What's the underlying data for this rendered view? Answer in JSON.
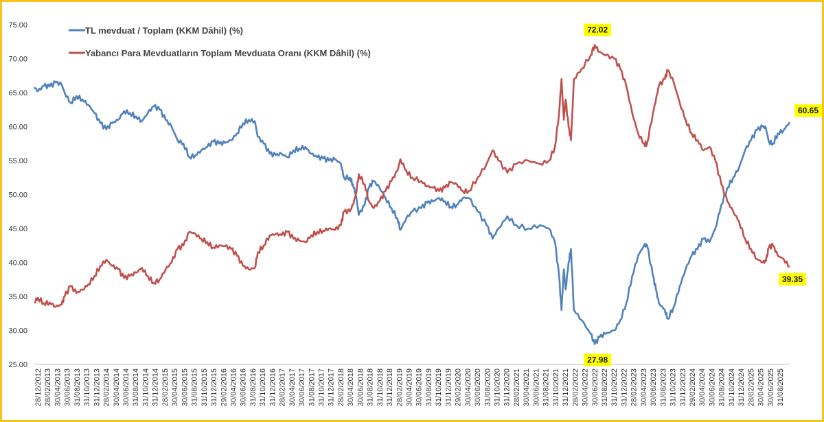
{
  "chart_data": {
    "type": "line",
    "title": "",
    "xlabel": "",
    "ylabel": "",
    "ylim": [
      25,
      75
    ],
    "y_ticks": [
      "25.00",
      "30.00",
      "35.00",
      "40.00",
      "45.00",
      "50.00",
      "55.00",
      "60.00",
      "65.00",
      "70.00",
      "75.00"
    ],
    "x_ticks": [
      "28/12/2012",
      "28/02/2013",
      "30/04/2013",
      "30/06/2013",
      "31/08/2013",
      "31/10/2013",
      "31/12/2013",
      "28/02/2014",
      "30/04/2014",
      "30/06/2014",
      "31/08/2014",
      "31/10/2014",
      "31/12/2014",
      "28/02/2015",
      "30/04/2015",
      "30/06/2015",
      "31/08/2015",
      "31/10/2015",
      "31/12/2015",
      "29/02/2016",
      "30/04/2016",
      "30/06/2016",
      "31/08/2016",
      "31/10/2016",
      "31/12/2016",
      "28/02/2017",
      "30/04/2017",
      "30/06/2017",
      "31/08/2017",
      "31/10/2017",
      "31/12/2017",
      "28/02/2018",
      "30/04/2018",
      "30/06/2018",
      "31/08/2018",
      "31/10/2018",
      "31/12/2018",
      "28/02/2019",
      "30/04/2019",
      "30/06/2019",
      "31/08/2019",
      "31/10/2019",
      "31/12/2019",
      "29/02/2020",
      "30/04/2020",
      "30/06/2020",
      "31/08/2020",
      "31/10/2020",
      "31/12/2020",
      "28/02/2021",
      "30/04/2021",
      "30/06/2021",
      "31/08/2021",
      "31/10/2021",
      "31/12/2021",
      "28/02/2022",
      "30/04/2022",
      "30/06/2022",
      "31/08/2022",
      "31/10/2022",
      "31/12/2022",
      "28/02/2023",
      "30/04/2023",
      "30/06/2023",
      "31/08/2023",
      "31/10/2023",
      "31/12/2023",
      "29/02/2024",
      "30/04/2024",
      "30/06/2024",
      "31/08/2024",
      "31/10/2024",
      "31/12/2024",
      "28/02/2025",
      "30/04/2025",
      "30/06/2025",
      "31/08/2025"
    ],
    "x_range": [
      2012.99,
      2025.7
    ],
    "series": [
      {
        "name": "TL mevduat / Toplam (KKM Dâhil) (%)",
        "color": "#4F81BD",
        "points": [
          [
            2012.99,
            65.8
          ],
          [
            2013.05,
            65.2
          ],
          [
            2013.15,
            66.0
          ],
          [
            2013.25,
            65.9
          ],
          [
            2013.35,
            66.5
          ],
          [
            2013.45,
            66.2
          ],
          [
            2013.5,
            65.0
          ],
          [
            2013.6,
            63.5
          ],
          [
            2013.7,
            64.5
          ],
          [
            2013.8,
            64.0
          ],
          [
            2013.9,
            63.2
          ],
          [
            2014.0,
            62.0
          ],
          [
            2014.1,
            60.5
          ],
          [
            2014.2,
            59.6
          ],
          [
            2014.3,
            60.5
          ],
          [
            2014.4,
            61.0
          ],
          [
            2014.5,
            62.3
          ],
          [
            2014.6,
            62.0
          ],
          [
            2014.7,
            61.5
          ],
          [
            2014.8,
            60.8
          ],
          [
            2014.9,
            62.0
          ],
          [
            2015.0,
            63.0
          ],
          [
            2015.1,
            62.5
          ],
          [
            2015.2,
            61.0
          ],
          [
            2015.3,
            60.0
          ],
          [
            2015.4,
            58.0
          ],
          [
            2015.5,
            57.5
          ],
          [
            2015.6,
            55.5
          ],
          [
            2015.7,
            55.8
          ],
          [
            2015.8,
            56.5
          ],
          [
            2015.9,
            57.0
          ],
          [
            2016.0,
            57.8
          ],
          [
            2016.1,
            57.5
          ],
          [
            2016.2,
            57.6
          ],
          [
            2016.3,
            58.0
          ],
          [
            2016.4,
            59.0
          ],
          [
            2016.5,
            60.5
          ],
          [
            2016.6,
            61.0
          ],
          [
            2016.7,
            60.8
          ],
          [
            2016.75,
            58.5
          ],
          [
            2016.85,
            57.5
          ],
          [
            2016.95,
            56.0
          ],
          [
            2017.05,
            55.8
          ],
          [
            2017.15,
            56.0
          ],
          [
            2017.25,
            55.5
          ],
          [
            2017.35,
            56.5
          ],
          [
            2017.45,
            56.8
          ],
          [
            2017.55,
            57.0
          ],
          [
            2017.65,
            56.0
          ],
          [
            2017.75,
            55.5
          ],
          [
            2017.85,
            55.3
          ],
          [
            2017.95,
            55.0
          ],
          [
            2018.05,
            55.2
          ],
          [
            2018.15,
            54.5
          ],
          [
            2018.2,
            52.5
          ],
          [
            2018.3,
            52.5
          ],
          [
            2018.35,
            51.5
          ],
          [
            2018.4,
            50.0
          ],
          [
            2018.45,
            47.0
          ],
          [
            2018.55,
            48.5
          ],
          [
            2018.62,
            51.0
          ],
          [
            2018.7,
            52.0
          ],
          [
            2018.8,
            51.0
          ],
          [
            2018.9,
            49.5
          ],
          [
            2019.0,
            48.0
          ],
          [
            2019.1,
            46.5
          ],
          [
            2019.15,
            44.8
          ],
          [
            2019.25,
            46.5
          ],
          [
            2019.35,
            47.5
          ],
          [
            2019.5,
            48.0
          ],
          [
            2019.6,
            48.8
          ],
          [
            2019.7,
            49.0
          ],
          [
            2019.8,
            49.5
          ],
          [
            2019.9,
            49.0
          ],
          [
            2020.0,
            48.2
          ],
          [
            2020.1,
            48.5
          ],
          [
            2020.2,
            49.5
          ],
          [
            2020.3,
            49.5
          ],
          [
            2020.45,
            47.5
          ],
          [
            2020.6,
            45.5
          ],
          [
            2020.7,
            43.5
          ],
          [
            2020.8,
            45.0
          ],
          [
            2020.95,
            46.8
          ],
          [
            2021.1,
            45.5
          ],
          [
            2021.3,
            45.0
          ],
          [
            2021.5,
            45.5
          ],
          [
            2021.65,
            45.0
          ],
          [
            2021.75,
            43.0
          ],
          [
            2021.82,
            38.0
          ],
          [
            2021.86,
            33.0
          ],
          [
            2021.9,
            39.0
          ],
          [
            2021.93,
            36.0
          ],
          [
            2021.98,
            40.0
          ],
          [
            2022.02,
            42.0
          ],
          [
            2022.07,
            33.0
          ],
          [
            2022.2,
            31.5
          ],
          [
            2022.35,
            29.5
          ],
          [
            2022.42,
            27.98
          ],
          [
            2022.5,
            29.0
          ],
          [
            2022.6,
            29.5
          ],
          [
            2022.75,
            30.0
          ],
          [
            2022.85,
            31.5
          ],
          [
            2022.95,
            34.0
          ],
          [
            2023.05,
            38.0
          ],
          [
            2023.15,
            41.0
          ],
          [
            2023.25,
            42.5
          ],
          [
            2023.3,
            42.5
          ],
          [
            2023.4,
            38.0
          ],
          [
            2023.45,
            36.0
          ],
          [
            2023.5,
            34.0
          ],
          [
            2023.6,
            33.0
          ],
          [
            2023.65,
            31.7
          ],
          [
            2023.75,
            33.5
          ],
          [
            2023.85,
            36.5
          ],
          [
            2023.95,
            39.0
          ],
          [
            2024.05,
            41.0
          ],
          [
            2024.15,
            42.0
          ],
          [
            2024.25,
            43.5
          ],
          [
            2024.35,
            43.0
          ],
          [
            2024.45,
            45.0
          ],
          [
            2024.55,
            48.5
          ],
          [
            2024.65,
            51.0
          ],
          [
            2024.75,
            52.5
          ],
          [
            2024.85,
            54.0
          ],
          [
            2024.95,
            56.5
          ],
          [
            2025.05,
            58.0
          ],
          [
            2025.15,
            59.5
          ],
          [
            2025.25,
            60.0
          ],
          [
            2025.3,
            59.8
          ],
          [
            2025.35,
            57.8
          ],
          [
            2025.42,
            57.5
          ],
          [
            2025.5,
            59.0
          ],
          [
            2025.6,
            59.5
          ],
          [
            2025.7,
            60.65
          ]
        ]
      },
      {
        "name": "Yabancı Para Mevduatların Toplam Mevduata Oranı (KKM Dâhil) (%)",
        "color": "#C0504D",
        "points": [
          [
            2012.99,
            34.2
          ],
          [
            2013.05,
            34.8
          ],
          [
            2013.15,
            34.0
          ],
          [
            2013.25,
            34.1
          ],
          [
            2013.35,
            33.5
          ],
          [
            2013.45,
            33.8
          ],
          [
            2013.5,
            35.0
          ],
          [
            2013.6,
            36.5
          ],
          [
            2013.7,
            35.5
          ],
          [
            2013.8,
            36.0
          ],
          [
            2013.9,
            36.8
          ],
          [
            2014.0,
            38.0
          ],
          [
            2014.1,
            39.5
          ],
          [
            2014.2,
            40.4
          ],
          [
            2014.3,
            39.5
          ],
          [
            2014.4,
            39.0
          ],
          [
            2014.5,
            37.7
          ],
          [
            2014.6,
            38.0
          ],
          [
            2014.7,
            38.5
          ],
          [
            2014.8,
            39.2
          ],
          [
            2014.9,
            38.0
          ],
          [
            2015.0,
            37.0
          ],
          [
            2015.1,
            37.5
          ],
          [
            2015.2,
            39.0
          ],
          [
            2015.3,
            40.0
          ],
          [
            2015.4,
            42.0
          ],
          [
            2015.5,
            42.5
          ],
          [
            2015.6,
            44.5
          ],
          [
            2015.7,
            44.2
          ],
          [
            2015.8,
            43.5
          ],
          [
            2015.9,
            43.0
          ],
          [
            2016.0,
            42.2
          ],
          [
            2016.1,
            42.5
          ],
          [
            2016.2,
            42.4
          ],
          [
            2016.3,
            42.0
          ],
          [
            2016.4,
            41.0
          ],
          [
            2016.5,
            39.5
          ],
          [
            2016.6,
            39.0
          ],
          [
            2016.7,
            39.2
          ],
          [
            2016.75,
            41.5
          ],
          [
            2016.85,
            42.5
          ],
          [
            2016.95,
            44.0
          ],
          [
            2017.05,
            44.2
          ],
          [
            2017.15,
            44.0
          ],
          [
            2017.25,
            44.5
          ],
          [
            2017.35,
            43.5
          ],
          [
            2017.45,
            43.2
          ],
          [
            2017.55,
            43.0
          ],
          [
            2017.65,
            44.0
          ],
          [
            2017.75,
            44.5
          ],
          [
            2017.85,
            44.7
          ],
          [
            2017.95,
            45.0
          ],
          [
            2018.05,
            44.8
          ],
          [
            2018.15,
            45.5
          ],
          [
            2018.2,
            47.5
          ],
          [
            2018.3,
            47.5
          ],
          [
            2018.35,
            48.5
          ],
          [
            2018.4,
            50.0
          ],
          [
            2018.45,
            53.0
          ],
          [
            2018.55,
            51.5
          ],
          [
            2018.62,
            49.0
          ],
          [
            2018.7,
            48.0
          ],
          [
            2018.8,
            49.0
          ],
          [
            2018.9,
            50.5
          ],
          [
            2019.0,
            52.0
          ],
          [
            2019.1,
            53.5
          ],
          [
            2019.15,
            55.2
          ],
          [
            2019.25,
            53.5
          ],
          [
            2019.35,
            52.5
          ],
          [
            2019.5,
            52.0
          ],
          [
            2019.6,
            51.2
          ],
          [
            2019.7,
            51.0
          ],
          [
            2019.8,
            50.5
          ],
          [
            2019.9,
            51.0
          ],
          [
            2020.0,
            51.8
          ],
          [
            2020.1,
            51.5
          ],
          [
            2020.2,
            50.5
          ],
          [
            2020.3,
            50.5
          ],
          [
            2020.45,
            52.5
          ],
          [
            2020.6,
            54.5
          ],
          [
            2020.7,
            56.5
          ],
          [
            2020.8,
            55.0
          ],
          [
            2020.95,
            53.2
          ],
          [
            2021.1,
            54.5
          ],
          [
            2021.3,
            55.0
          ],
          [
            2021.5,
            54.5
          ],
          [
            2021.65,
            55.0
          ],
          [
            2021.75,
            57.0
          ],
          [
            2021.82,
            62.0
          ],
          [
            2021.86,
            67.0
          ],
          [
            2021.9,
            61.0
          ],
          [
            2021.93,
            64.0
          ],
          [
            2021.98,
            60.0
          ],
          [
            2022.02,
            58.0
          ],
          [
            2022.07,
            67.0
          ],
          [
            2022.2,
            68.5
          ],
          [
            2022.35,
            70.5
          ],
          [
            2022.42,
            72.02
          ],
          [
            2022.5,
            71.0
          ],
          [
            2022.6,
            70.5
          ],
          [
            2022.75,
            70.0
          ],
          [
            2022.85,
            68.5
          ],
          [
            2022.95,
            66.0
          ],
          [
            2023.05,
            62.0
          ],
          [
            2023.15,
            59.0
          ],
          [
            2023.25,
            57.5
          ],
          [
            2023.3,
            57.5
          ],
          [
            2023.4,
            62.0
          ],
          [
            2023.45,
            64.0
          ],
          [
            2023.5,
            66.0
          ],
          [
            2023.6,
            67.0
          ],
          [
            2023.65,
            68.3
          ],
          [
            2023.75,
            66.5
          ],
          [
            2023.85,
            63.5
          ],
          [
            2023.95,
            61.0
          ],
          [
            2024.05,
            59.0
          ],
          [
            2024.15,
            58.0
          ],
          [
            2024.25,
            56.5
          ],
          [
            2024.35,
            57.0
          ],
          [
            2024.45,
            55.0
          ],
          [
            2024.55,
            51.5
          ],
          [
            2024.65,
            49.0
          ],
          [
            2024.75,
            47.5
          ],
          [
            2024.85,
            46.0
          ],
          [
            2024.95,
            43.5
          ],
          [
            2025.05,
            42.0
          ],
          [
            2025.15,
            40.5
          ],
          [
            2025.25,
            40.0
          ],
          [
            2025.3,
            40.2
          ],
          [
            2025.35,
            42.2
          ],
          [
            2025.42,
            42.5
          ],
          [
            2025.5,
            41.0
          ],
          [
            2025.6,
            40.5
          ],
          [
            2025.7,
            39.35
          ]
        ]
      }
    ],
    "annotations": [
      {
        "text": "72.02",
        "series": 1,
        "x": 2022.42,
        "y": 72.02,
        "side": "above"
      },
      {
        "text": "27.98",
        "series": 0,
        "x": 2022.42,
        "y": 27.98,
        "side": "below"
      },
      {
        "text": "60.65",
        "series": 0,
        "x": 2025.7,
        "y": 60.65,
        "side": "right"
      },
      {
        "text": "39.35",
        "series": 1,
        "x": 2025.7,
        "y": 39.35,
        "side": "below"
      }
    ],
    "legend_position": "top-left",
    "grid": false
  },
  "colors": {
    "frame": "#F5C518",
    "callout_bg": "#FFFF00"
  }
}
